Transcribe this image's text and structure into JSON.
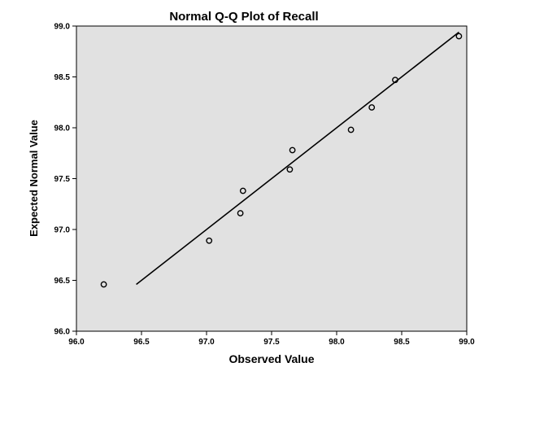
{
  "chart_data": {
    "type": "scatter",
    "title": "Normal Q-Q Plot of Recall",
    "xlabel": "Observed Value",
    "ylabel": "Expected Normal Value",
    "xlim": [
      96.0,
      99.0
    ],
    "ylim": [
      96.0,
      99.0
    ],
    "x_ticks": [
      "96.0",
      "96.5",
      "97.0",
      "97.5",
      "98.0",
      "98.5",
      "99.0"
    ],
    "y_ticks": [
      "96.0",
      "96.5",
      "97.0",
      "97.5",
      "98.0",
      "98.5",
      "99.0"
    ],
    "points": [
      {
        "x": 96.21,
        "y": 96.46
      },
      {
        "x": 97.02,
        "y": 96.89
      },
      {
        "x": 97.26,
        "y": 97.16
      },
      {
        "x": 97.28,
        "y": 97.38
      },
      {
        "x": 97.64,
        "y": 97.59
      },
      {
        "x": 97.66,
        "y": 97.78
      },
      {
        "x": 98.11,
        "y": 97.98
      },
      {
        "x": 98.27,
        "y": 98.2
      },
      {
        "x": 98.45,
        "y": 98.47
      },
      {
        "x": 98.94,
        "y": 98.9
      }
    ],
    "reference_line": {
      "x1": 96.46,
      "y1": 96.46,
      "x2": 98.94,
      "y2": 98.94
    },
    "plot_background": "#e1e1e1",
    "marker_color": "#000000",
    "grid": false
  }
}
